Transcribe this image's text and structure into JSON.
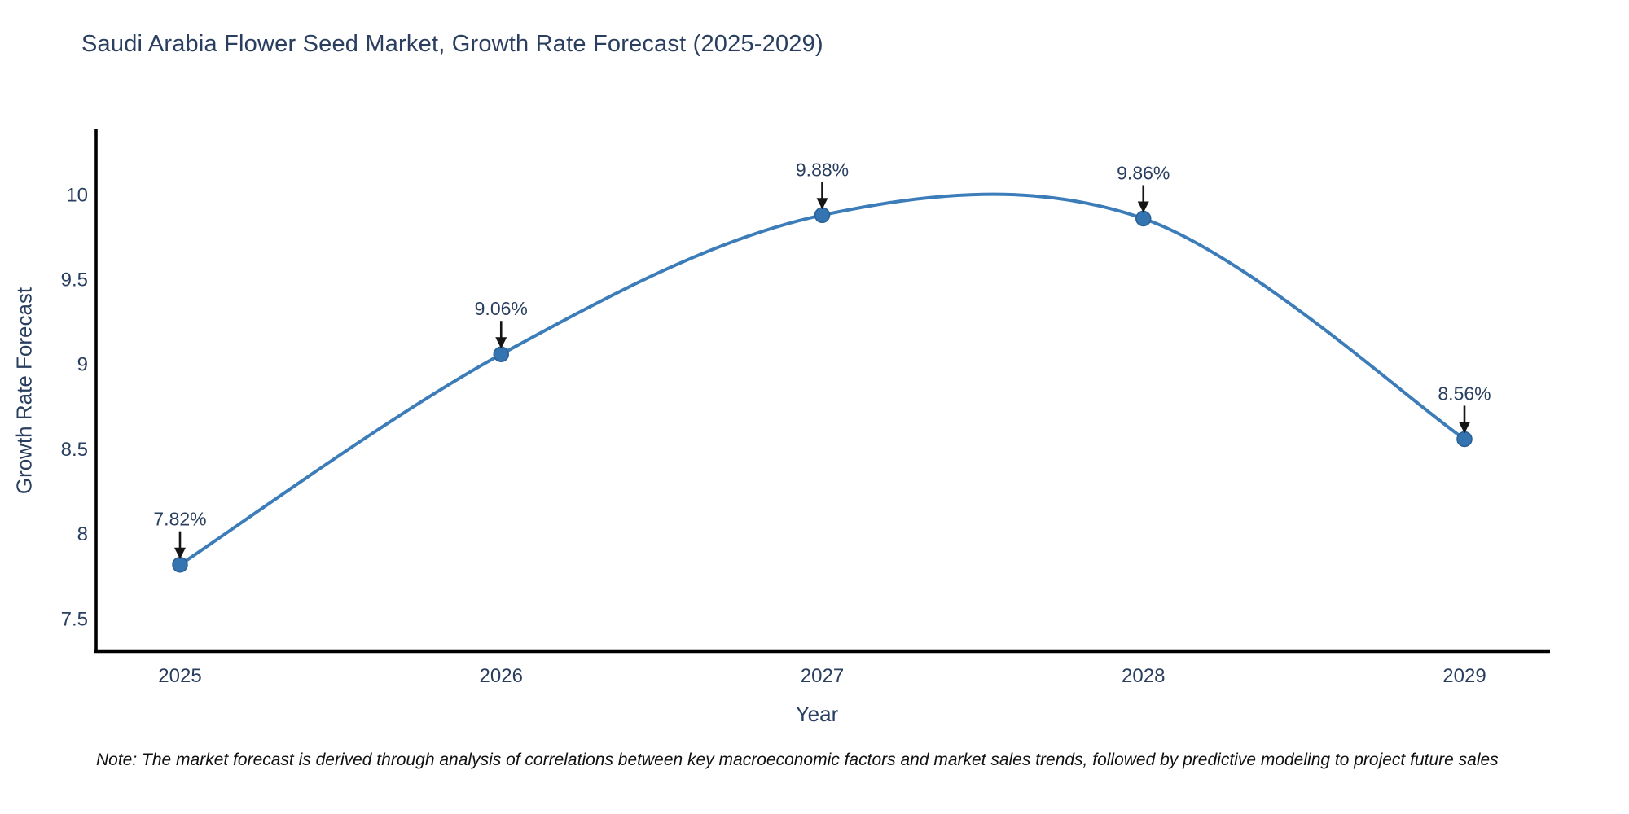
{
  "title": "Saudi Arabia Flower Seed Market, Growth Rate Forecast (2025-2029)",
  "x_axis_title": "Year",
  "y_axis_title": "Growth Rate Forecast",
  "note": "Note: The market forecast is derived through analysis of correlations between key macroeconomic factors and market sales trends, followed by predictive modeling to project future sales",
  "colors": {
    "line": "#3c7db9",
    "marker": "#3474b0",
    "marker_edge": "#2a5f94",
    "axis_line": "#000000",
    "arrow": "#151515",
    "text": "#2a3f5f",
    "note_text": "#101010",
    "background": "#ffffff"
  },
  "chart_data": {
    "type": "line",
    "line_shape": "spline",
    "x": [
      2025,
      2026,
      2027,
      2028,
      2029
    ],
    "series": [
      {
        "name": "Growth Rate Forecast",
        "values": [
          7.82,
          9.06,
          9.88,
          9.86,
          8.56
        ]
      }
    ],
    "point_labels": [
      "7.82%",
      "9.06%",
      "9.88%",
      "9.86%",
      "8.56%"
    ],
    "title": "Saudi Arabia Flower Seed Market, Growth Rate Forecast (2025-2029)",
    "xlabel": "Year",
    "ylabel": "Growth Rate Forecast",
    "xticks": [
      2025,
      2026,
      2027,
      2028,
      2029
    ],
    "yticks": [
      7.5,
      8,
      8.5,
      9,
      9.5,
      10
    ],
    "ylim": [
      7.31,
      10.39
    ],
    "xlim": [
      2024.74,
      2029.27
    ],
    "grid": false,
    "legend": "none",
    "annotations": "value labels above each point with downward arrows"
  }
}
